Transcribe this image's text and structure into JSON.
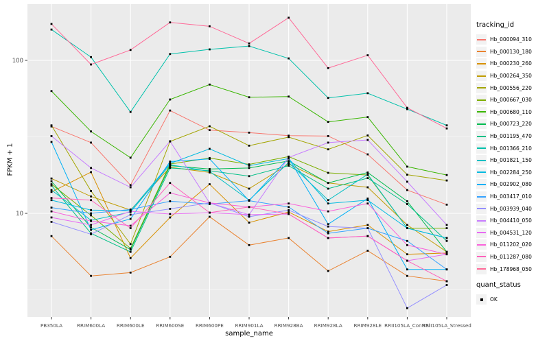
{
  "figure": {
    "ylabel": "FPKM + 1",
    "xlabel": "sample_name"
  },
  "legend": {
    "tracking_title": "tracking_id",
    "quant_title": "quant_status",
    "quant_items": [
      {
        "label": "OK"
      }
    ]
  },
  "chart_data": {
    "type": "line",
    "title": "",
    "xlabel": "sample_name",
    "ylabel": "FPKM + 1",
    "y_scale": "log10",
    "ylim": [
      2,
      230
    ],
    "grid": "on",
    "legend_position": "right",
    "panel_bg": "#EBEBEB",
    "grid_color": "#FFFFFF",
    "tick_label_color": "#4D4D4D",
    "point_color": "#000000",
    "point_shape": "square",
    "yticks": [
      {
        "label": "100",
        "value": 100
      },
      {
        "label": "10",
        "value": 10
      }
    ],
    "y_minor_breaks": [
      31.62,
      3.162
    ],
    "categories": [
      "PB350LA",
      "RRIM600LA",
      "RRIM600LE",
      "RRIM600SE",
      "RRIM600PE",
      "RRIM901LA",
      "RRIM928BA",
      "RRIM928LA",
      "RRIM928LE",
      "RRII105LA_Control",
      "RRII105LA_Stressed"
    ],
    "series": [
      {
        "name": "Hb_000094_310",
        "color": "#F8766D",
        "values": [
          37,
          29,
          15.3,
          47,
          35,
          33.7,
          32.2,
          32,
          24.3,
          14.2,
          11.4
        ]
      },
      {
        "name": "Hb_000130_180",
        "color": "#EA8331",
        "values": [
          7.1,
          3.9,
          4.1,
          5.2,
          9.5,
          6.2,
          6.9,
          4.2,
          5.7,
          3.9,
          3.6
        ]
      },
      {
        "name": "Hb_000230_260",
        "color": "#D89000",
        "values": [
          13.8,
          18.6,
          5.1,
          9.4,
          15.5,
          8.7,
          10.2,
          7.6,
          8.4,
          5.4,
          5.5
        ]
      },
      {
        "name": "Hb_000264_350",
        "color": "#C09B00",
        "values": [
          16.9,
          12.9,
          10.5,
          20,
          18.5,
          14.5,
          21,
          15.8,
          14.8,
          8.4,
          5.6
        ]
      },
      {
        "name": "Hb_000556_220",
        "color": "#A3A500",
        "values": [
          37.6,
          14,
          6.3,
          29.5,
          37.1,
          27.7,
          31.5,
          26.2,
          32.3,
          17.9,
          16.4
        ]
      },
      {
        "name": "Hb_000667_030",
        "color": "#7CAE00",
        "values": [
          15.5,
          9.7,
          5.9,
          21,
          23,
          20.9,
          23.5,
          18.4,
          17.8,
          8.0,
          8.0
        ]
      },
      {
        "name": "Hb_000680_110",
        "color": "#39B600",
        "values": [
          63,
          34.3,
          23.1,
          55.5,
          69.5,
          57.4,
          58,
          39.6,
          42.6,
          20.2,
          17.8
        ]
      },
      {
        "name": "Hb_000723_220",
        "color": "#00BB4E",
        "values": [
          16.2,
          8.1,
          5.8,
          20.5,
          19.5,
          19.8,
          22,
          15.8,
          18.5,
          12.0,
          5.6
        ]
      },
      {
        "name": "Hb_001195_470",
        "color": "#00C087",
        "values": [
          15.2,
          7.4,
          5.6,
          19.8,
          19,
          17.5,
          20.5,
          14.5,
          17,
          11.5,
          6.6
        ]
      },
      {
        "name": "Hb_001366_210",
        "color": "#00C1AB",
        "values": [
          159,
          105,
          46,
          110,
          118,
          124,
          103,
          56.8,
          61,
          48,
          37.6
        ]
      },
      {
        "name": "Hb_001821_150",
        "color": "#00BFC4",
        "values": [
          14.2,
          9.0,
          10.2,
          20.8,
          18.8,
          12.2,
          21.5,
          12.2,
          18,
          8.0,
          6.9
        ]
      },
      {
        "name": "Hb_002284_250",
        "color": "#00BAE0",
        "values": [
          12.2,
          10.5,
          10.4,
          21.2,
          26.4,
          20.5,
          22.8,
          11.6,
          12.2,
          8.0,
          6.9
        ]
      },
      {
        "name": "Hb_002902_080",
        "color": "#00B0F6",
        "values": [
          29.3,
          7.8,
          9.2,
          21.8,
          22.7,
          12.1,
          23,
          8.5,
          12.5,
          4.3,
          4.3
        ]
      },
      {
        "name": "Hb_003417_010",
        "color": "#35A2FF",
        "values": [
          10.9,
          10.0,
          10.6,
          12.0,
          11.5,
          12.1,
          11.0,
          7.4,
          8.0,
          6.6,
          4.3
        ]
      },
      {
        "name": "Hb_003939_040",
        "color": "#9590FF",
        "values": [
          8.8,
          7.3,
          9.8,
          10.7,
          11.7,
          9.5,
          10.5,
          8.2,
          8.0,
          2.4,
          3.4
        ]
      },
      {
        "name": "Hb_004410_050",
        "color": "#C77CFF",
        "values": [
          32,
          19.8,
          14.8,
          29.6,
          11.7,
          9.8,
          23.2,
          29,
          30.2,
          16.1,
          8.4
        ]
      },
      {
        "name": "Hb_004531_120",
        "color": "#E76BF3",
        "values": [
          9.4,
          8.4,
          10.3,
          9.9,
          10.1,
          9.8,
          9.9,
          6.9,
          7.1,
          4.9,
          5.4
        ]
      },
      {
        "name": "Hb_011202_020",
        "color": "#FA62DB",
        "values": [
          10.3,
          8.9,
          8.3,
          13.6,
          11.7,
          11.0,
          11.6,
          10.3,
          11.6,
          6.2,
          5.4
        ]
      },
      {
        "name": "Hb_011287_080",
        "color": "#FF62BC",
        "values": [
          12.6,
          12.2,
          8.0,
          15.8,
          10.1,
          11.0,
          9.9,
          6.9,
          7.1,
          4.9,
          3.6
        ]
      },
      {
        "name": "Hb_178968_050",
        "color": "#FF6A98",
        "values": [
          173,
          94,
          117,
          177,
          167,
          129,
          190,
          89,
          108,
          49,
          35.9
        ]
      }
    ]
  }
}
